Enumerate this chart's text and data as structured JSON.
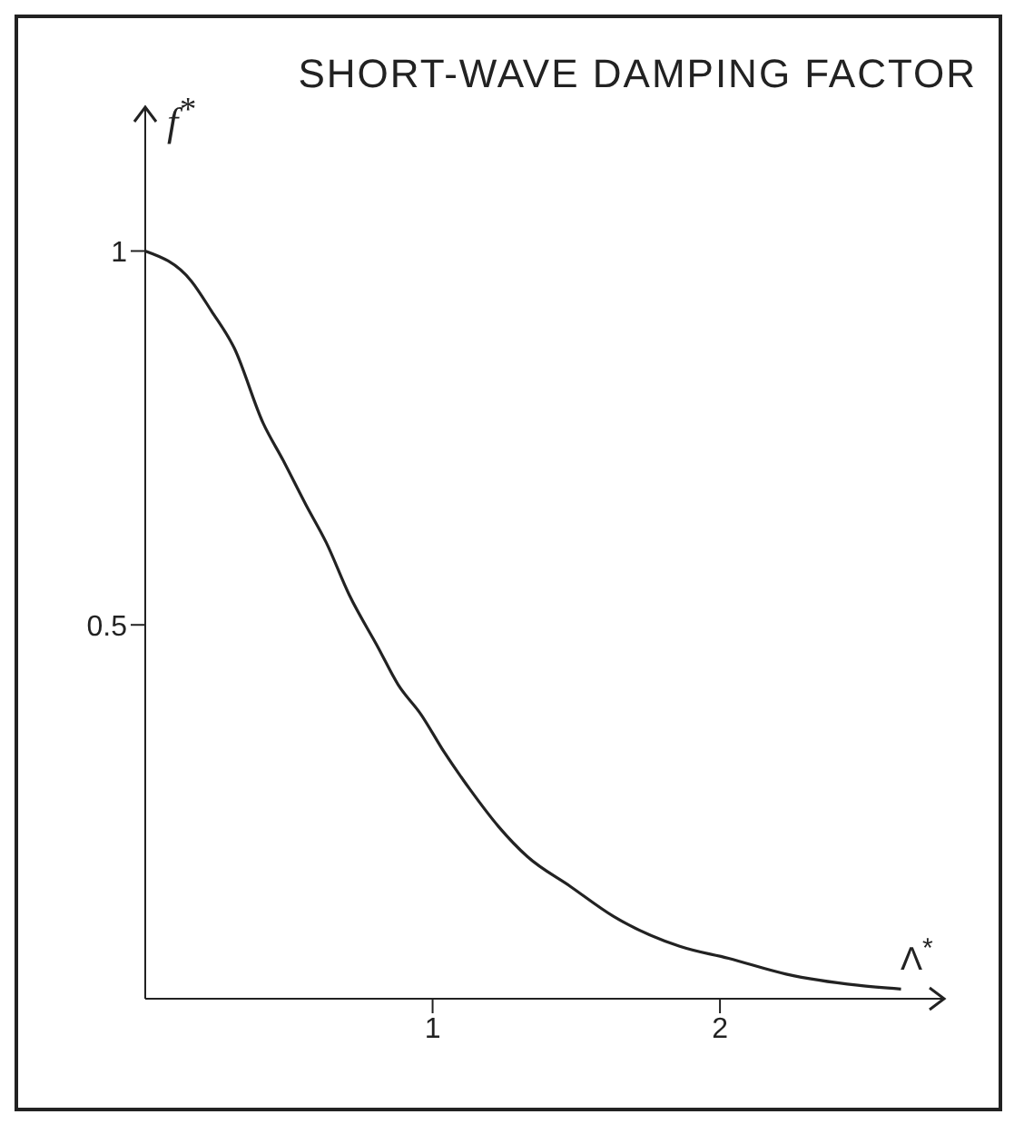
{
  "chart_data": {
    "type": "line",
    "title": "SHORT-WAVE DAMPING FACTOR",
    "xlabel": "Λ$^{*}$",
    "ylabel": "f$^{*}$",
    "x": [
      0,
      0.16,
      0.23,
      0.31,
      0.41,
      0.48,
      0.56,
      0.63,
      0.71,
      0.81,
      0.88,
      0.96,
      1.04,
      1.13,
      1.23,
      1.33,
      1.48,
      1.63,
      1.86,
      2.03,
      2.23,
      2.48,
      2.63
    ],
    "series": [
      {
        "color": "#222222",
        "values": [
          1.0,
          0.96,
          0.92,
          0.87,
          0.77,
          0.72,
          0.66,
          0.61,
          0.54,
          0.47,
          0.42,
          0.38,
          0.33,
          0.28,
          0.23,
          0.19,
          0.15,
          0.11,
          0.07,
          0.054,
          0.033,
          0.018,
          0.013
        ]
      }
    ],
    "xlim": [
      0,
      2.78
    ],
    "ylim": [
      0,
      1.19
    ],
    "xticks": [
      1,
      2
    ],
    "yticks": [
      0.5,
      1
    ],
    "grid": false,
    "legend": false,
    "marker": "none",
    "line_style": "solid"
  }
}
